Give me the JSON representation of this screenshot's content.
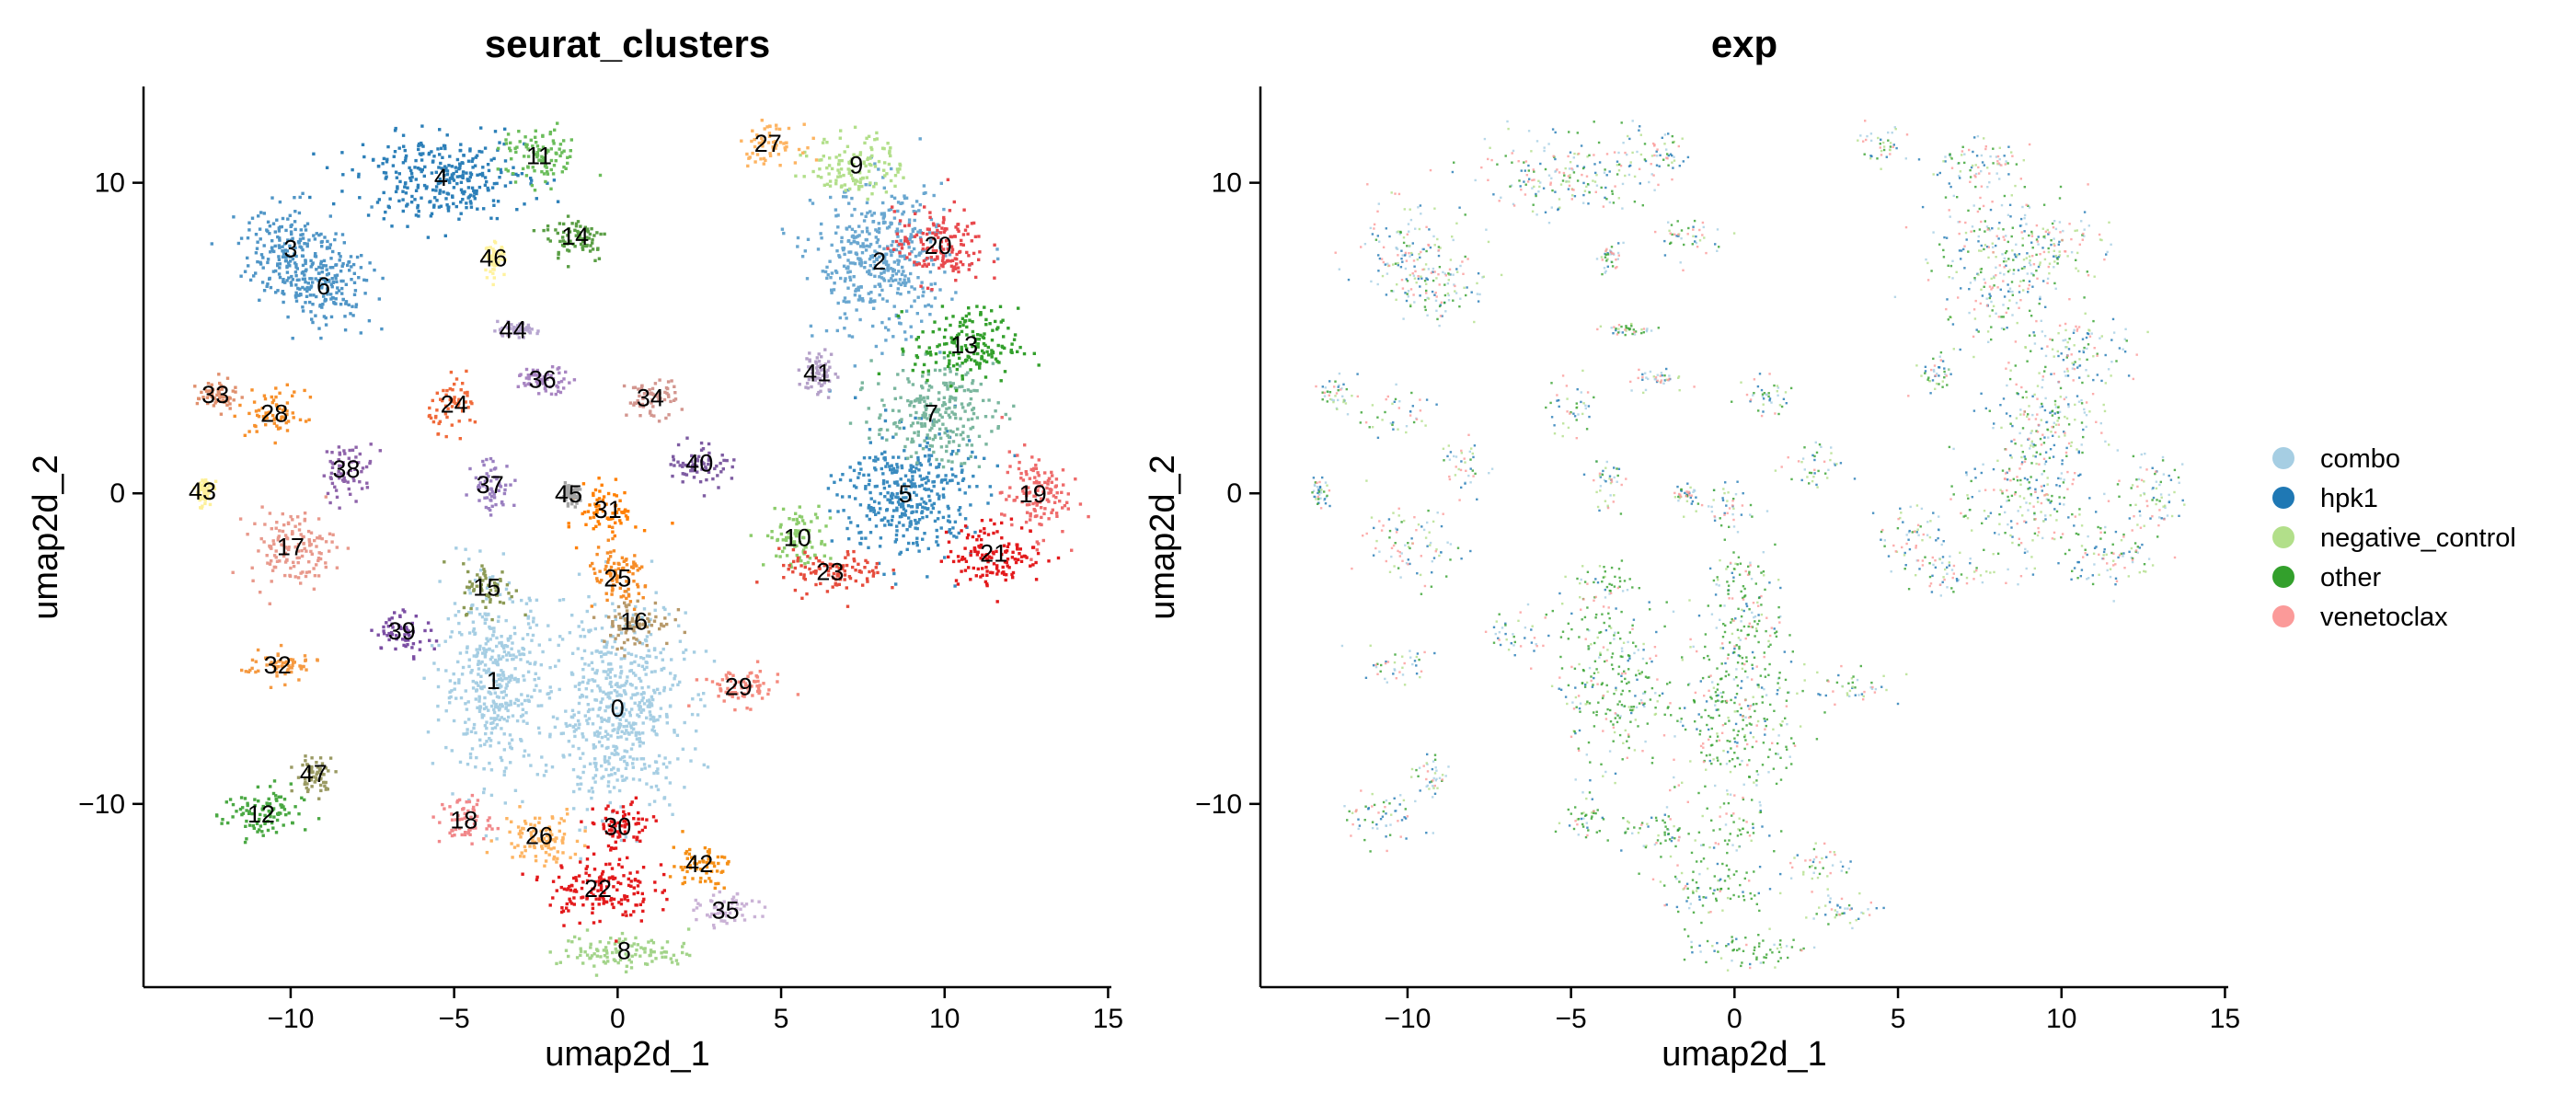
{
  "chart_data": [
    {
      "type": "scatter",
      "title": "seurat_clusters",
      "xlabel": "umap2d_1",
      "ylabel": "umap2d_2",
      "xlim": [
        -14.5,
        15.1
      ],
      "ylim": [
        -15.9,
        13.1
      ],
      "x_ticks": [
        -10,
        -5,
        0,
        5,
        10,
        15
      ],
      "y_ticks": [
        -10,
        0,
        10
      ],
      "x_tick_labels": [
        "−10",
        "−5",
        "0",
        "5",
        "10",
        "15"
      ],
      "y_tick_labels": [
        "−10",
        "0",
        "10"
      ],
      "grid": false,
      "clusters": [
        {
          "label": "0",
          "x": 0.0,
          "y": -6.9,
          "color": "#a6cee3",
          "sx": 2.0,
          "sy": 3.2
        },
        {
          "label": "1",
          "x": -3.8,
          "y": -6.0,
          "color": "#a6cee3",
          "sx": 1.6,
          "sy": 3.0
        },
        {
          "label": "2",
          "x": 8.0,
          "y": 7.5,
          "color": "#6aa7d0",
          "sx": 2.0,
          "sy": 2.4
        },
        {
          "label": "3",
          "x": -10.0,
          "y": 7.9,
          "color": "#4f95c6",
          "sx": 1.6,
          "sy": 1.4
        },
        {
          "label": "4",
          "x": -5.4,
          "y": 10.2,
          "color": "#2c7fb8",
          "sx": 2.6,
          "sy": 1.3
        },
        {
          "label": "5",
          "x": 8.8,
          "y": 0.0,
          "color": "#3a8bbf",
          "sx": 2.0,
          "sy": 2.1
        },
        {
          "label": "6",
          "x": -9.0,
          "y": 6.7,
          "color": "#4f95c6",
          "sx": 1.5,
          "sy": 1.2
        },
        {
          "label": "7",
          "x": 9.6,
          "y": 2.6,
          "color": "#7ab69e",
          "sx": 1.8,
          "sy": 1.5
        },
        {
          "label": "8",
          "x": 0.2,
          "y": -14.7,
          "color": "#a3d48a",
          "sx": 2.0,
          "sy": 0.6
        },
        {
          "label": "9",
          "x": 7.3,
          "y": 10.6,
          "color": "#b2df8a",
          "sx": 1.4,
          "sy": 1.0
        },
        {
          "label": "10",
          "x": 5.5,
          "y": -1.4,
          "color": "#8ccc6b",
          "sx": 1.0,
          "sy": 1.0
        },
        {
          "label": "11",
          "x": -2.4,
          "y": 10.9,
          "color": "#6bbd5b",
          "sx": 1.2,
          "sy": 0.9
        },
        {
          "label": "12",
          "x": -10.9,
          "y": -10.3,
          "color": "#4aa843",
          "sx": 1.2,
          "sy": 0.9
        },
        {
          "label": "13",
          "x": 10.6,
          "y": 4.8,
          "color": "#33a02c",
          "sx": 1.6,
          "sy": 1.2
        },
        {
          "label": "14",
          "x": -1.3,
          "y": 8.3,
          "color": "#5a9e45",
          "sx": 1.0,
          "sy": 0.8
        },
        {
          "label": "15",
          "x": -4.0,
          "y": -3.0,
          "color": "#8c9a55",
          "sx": 0.8,
          "sy": 0.8
        },
        {
          "label": "16",
          "x": 0.5,
          "y": -4.1,
          "color": "#b7996a",
          "sx": 1.1,
          "sy": 0.8
        },
        {
          "label": "17",
          "x": -10.0,
          "y": -1.7,
          "color": "#e8998c",
          "sx": 1.3,
          "sy": 1.2
        },
        {
          "label": "18",
          "x": -4.7,
          "y": -10.5,
          "color": "#f1888a",
          "sx": 0.8,
          "sy": 0.8
        },
        {
          "label": "19",
          "x": 12.7,
          "y": 0.0,
          "color": "#ee6b6b",
          "sx": 1.0,
          "sy": 1.4
        },
        {
          "label": "20",
          "x": 9.8,
          "y": 8.0,
          "color": "#e8494d",
          "sx": 1.4,
          "sy": 1.2
        },
        {
          "label": "21",
          "x": 11.5,
          "y": -1.9,
          "color": "#e31a1c",
          "sx": 1.5,
          "sy": 1.0
        },
        {
          "label": "22",
          "x": -0.6,
          "y": -12.7,
          "color": "#e31a1c",
          "sx": 1.6,
          "sy": 1.1
        },
        {
          "label": "23",
          "x": 6.5,
          "y": -2.5,
          "color": "#e64c3c",
          "sx": 1.6,
          "sy": 0.7
        },
        {
          "label": "24",
          "x": -5.0,
          "y": 2.9,
          "color": "#f06a3a",
          "sx": 0.8,
          "sy": 0.8
        },
        {
          "label": "25",
          "x": 0.0,
          "y": -2.7,
          "color": "#f68c27",
          "sx": 1.0,
          "sy": 1.0
        },
        {
          "label": "26",
          "x": -2.4,
          "y": -11.0,
          "color": "#fdb462",
          "sx": 1.2,
          "sy": 0.9
        },
        {
          "label": "27",
          "x": 4.6,
          "y": 11.3,
          "color": "#fdb462",
          "sx": 0.9,
          "sy": 0.6
        },
        {
          "label": "28",
          "x": -10.5,
          "y": 2.6,
          "color": "#f7902b",
          "sx": 0.9,
          "sy": 0.8
        },
        {
          "label": "29",
          "x": 3.7,
          "y": -6.2,
          "color": "#f48a7e",
          "sx": 1.3,
          "sy": 0.6
        },
        {
          "label": "30",
          "x": 0.0,
          "y": -10.7,
          "color": "#e31a1c",
          "sx": 1.0,
          "sy": 0.8
        },
        {
          "label": "31",
          "x": -0.3,
          "y": -0.5,
          "color": "#ff7f00",
          "sx": 0.9,
          "sy": 0.9
        },
        {
          "label": "32",
          "x": -10.4,
          "y": -5.5,
          "color": "#f59a42",
          "sx": 1.2,
          "sy": 0.5
        },
        {
          "label": "33",
          "x": -12.3,
          "y": 3.2,
          "color": "#e0906e",
          "sx": 0.6,
          "sy": 0.5
        },
        {
          "label": "34",
          "x": 1.0,
          "y": 3.1,
          "color": "#d3968f",
          "sx": 0.8,
          "sy": 0.6
        },
        {
          "label": "35",
          "x": 3.3,
          "y": -13.4,
          "color": "#cab2d6",
          "sx": 0.9,
          "sy": 0.5
        },
        {
          "label": "36",
          "x": -2.3,
          "y": 3.7,
          "color": "#a885c2",
          "sx": 0.9,
          "sy": 0.4
        },
        {
          "label": "37",
          "x": -3.9,
          "y": 0.3,
          "color": "#9a7fc0",
          "sx": 0.6,
          "sy": 0.9
        },
        {
          "label": "38",
          "x": -8.3,
          "y": 0.8,
          "color": "#8e63aa",
          "sx": 0.8,
          "sy": 0.9
        },
        {
          "label": "39",
          "x": -6.6,
          "y": -4.4,
          "color": "#7b4ea3",
          "sx": 0.9,
          "sy": 0.7
        },
        {
          "label": "40",
          "x": 2.5,
          "y": 1.0,
          "color": "#7e5ca2",
          "sx": 1.0,
          "sy": 0.7
        },
        {
          "label": "41",
          "x": 6.1,
          "y": 3.9,
          "color": "#b4a0c8",
          "sx": 0.5,
          "sy": 0.8
        },
        {
          "label": "42",
          "x": 2.5,
          "y": -11.9,
          "color": "#f58f16",
          "sx": 0.9,
          "sy": 0.7
        },
        {
          "label": "43",
          "x": -12.7,
          "y": 0.1,
          "color": "#fdf09a",
          "sx": 0.3,
          "sy": 0.5
        },
        {
          "label": "44",
          "x": -3.2,
          "y": 5.3,
          "color": "#b7a6d0",
          "sx": 0.7,
          "sy": 0.2
        },
        {
          "label": "45",
          "x": -1.5,
          "y": 0.0,
          "color": "#a4a4a4",
          "sx": 0.3,
          "sy": 0.3
        },
        {
          "label": "46",
          "x": -3.8,
          "y": 7.6,
          "color": "#fff29e",
          "sx": 0.3,
          "sy": 0.5
        },
        {
          "label": "47",
          "x": -9.3,
          "y": -9.0,
          "color": "#9a9a63",
          "sx": 0.6,
          "sy": 0.6
        }
      ]
    },
    {
      "type": "scatter",
      "title": "exp",
      "xlabel": "umap2d_1",
      "ylabel": "umap2d_2",
      "xlim": [
        -14.5,
        15.1
      ],
      "ylim": [
        -15.9,
        13.1
      ],
      "x_ticks": [
        -10,
        -5,
        0,
        5,
        10,
        15
      ],
      "y_ticks": [
        -10,
        0,
        10
      ],
      "x_tick_labels": [
        "−10",
        "−5",
        "0",
        "5",
        "10",
        "15"
      ],
      "y_tick_labels": [
        "−10",
        "0",
        "10"
      ],
      "grid": false,
      "legend_position": "right",
      "series": [
        {
          "name": "combo",
          "color": "#a6cee3"
        },
        {
          "name": "hpk1",
          "color": "#1f78b4"
        },
        {
          "name": "negative_control",
          "color": "#b2df8a"
        },
        {
          "name": "other",
          "color": "#33a02c"
        },
        {
          "name": "venetoclax",
          "color": "#fb9a99"
        }
      ]
    }
  ]
}
